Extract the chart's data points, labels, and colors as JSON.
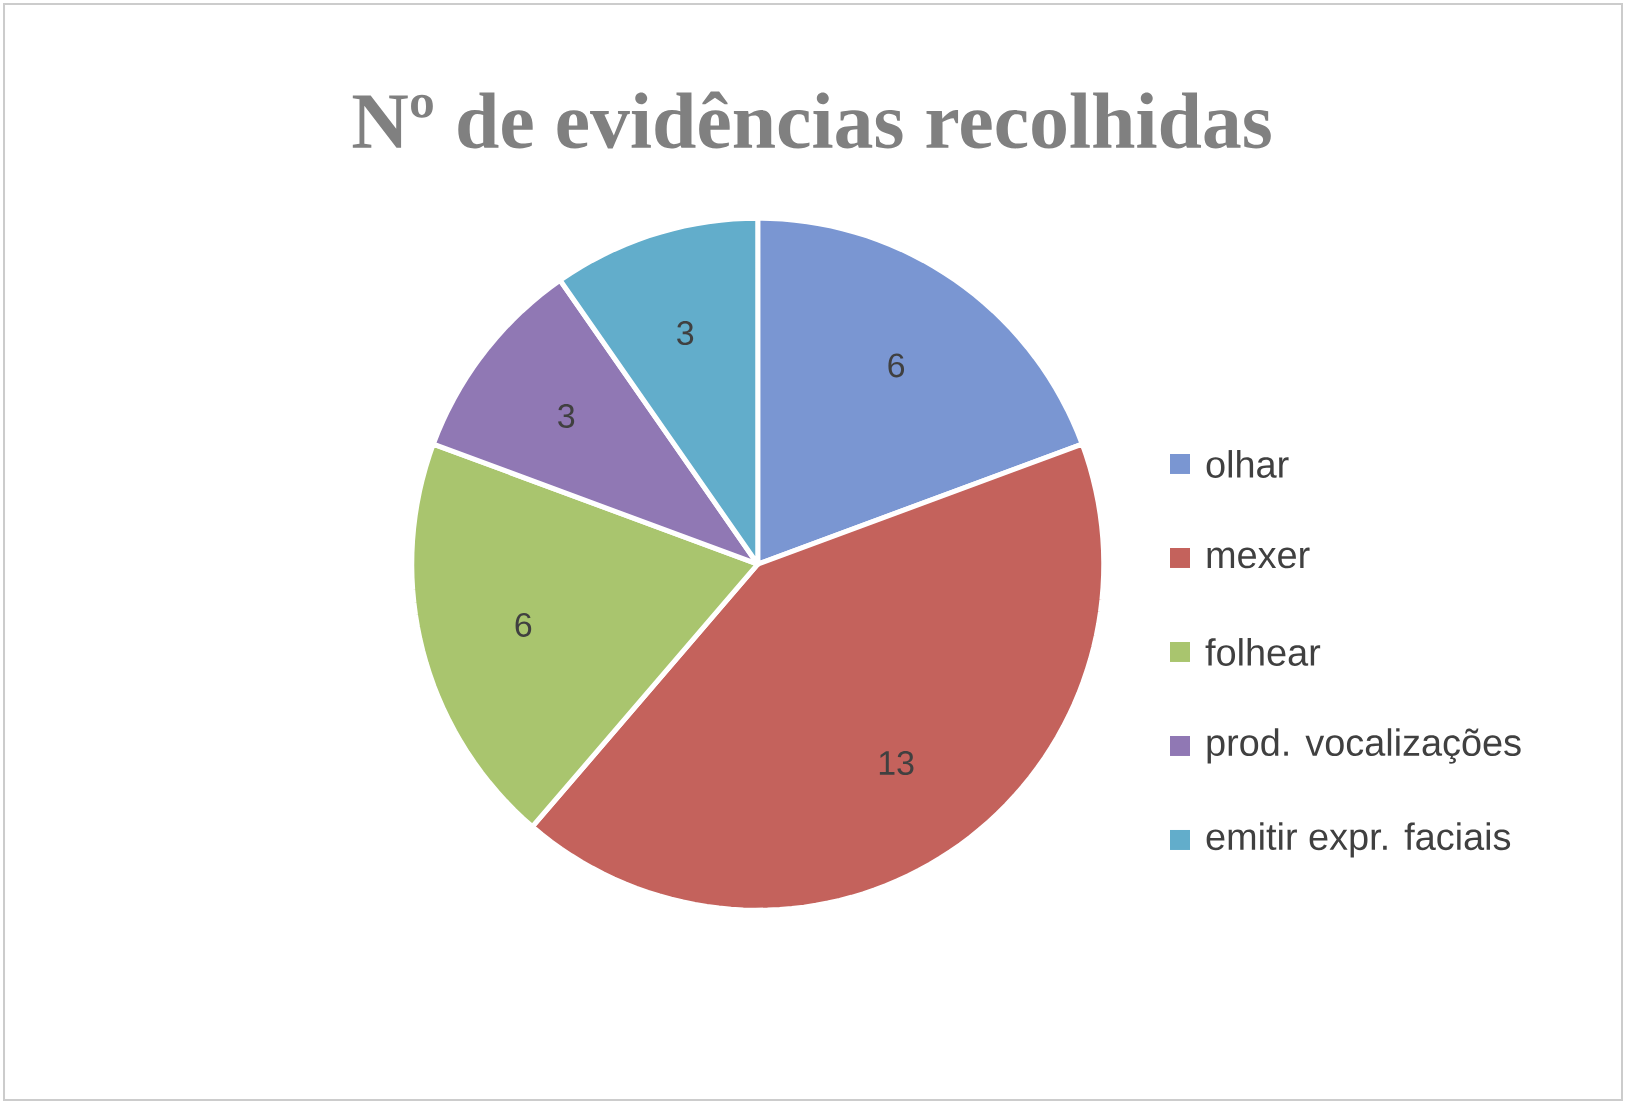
{
  "chart_data": {
    "type": "pie",
    "title": "Nº de evidências recolhidas",
    "categories": [
      "olhar",
      "mexer",
      "folhear",
      "prod. vocalizações",
      "emitir expr. faciais"
    ],
    "values": [
      6,
      13,
      6,
      3,
      3
    ],
    "colors": [
      "#7a96d2",
      "#c4625c",
      "#a9c56e",
      "#9078b4",
      "#62adcb"
    ],
    "data_labels": true,
    "legend": "right"
  }
}
